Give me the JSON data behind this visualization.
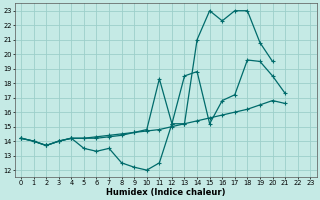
{
  "xlabel": "Humidex (Indice chaleur)",
  "xlim": [
    -0.5,
    23.5
  ],
  "ylim": [
    11.5,
    23.5
  ],
  "xticks": [
    0,
    1,
    2,
    3,
    4,
    5,
    6,
    7,
    8,
    9,
    10,
    11,
    12,
    13,
    14,
    15,
    16,
    17,
    18,
    19,
    20,
    21,
    22,
    23
  ],
  "yticks": [
    12,
    13,
    14,
    15,
    16,
    17,
    18,
    19,
    20,
    21,
    22,
    23
  ],
  "bg_color": "#c5eae5",
  "grid_color": "#9dcfca",
  "line_color": "#006b6b",
  "line1_x": [
    0,
    1,
    2,
    3,
    4,
    5,
    6,
    7,
    8,
    9,
    10,
    11,
    12,
    13,
    14,
    15,
    16,
    17,
    18,
    19,
    20,
    21
  ],
  "line1_y": [
    14.2,
    14.0,
    13.7,
    14.0,
    14.2,
    14.2,
    14.3,
    14.4,
    14.5,
    14.6,
    14.7,
    14.8,
    15.0,
    15.2,
    15.4,
    15.6,
    15.8,
    16.0,
    16.2,
    16.5,
    16.8,
    16.6
  ],
  "line2_x": [
    0,
    1,
    2,
    3,
    4,
    5,
    6,
    7,
    8,
    9,
    10,
    11,
    12,
    13,
    14,
    15,
    16,
    17,
    18,
    19,
    20,
    21,
    22,
    23
  ],
  "line2_y": [
    14.2,
    14.0,
    13.7,
    14.0,
    14.2,
    14.2,
    14.2,
    14.3,
    14.4,
    14.6,
    14.8,
    18.3,
    15.2,
    18.5,
    18.8,
    15.2,
    16.8,
    17.2,
    19.6,
    19.5,
    18.5,
    17.3,
    null,
    null
  ],
  "line3_x": [
    0,
    1,
    2,
    3,
    4,
    5,
    6,
    7,
    8,
    9,
    10,
    11,
    12,
    13,
    14,
    15,
    16,
    17,
    18,
    19,
    20
  ],
  "line3_y": [
    14.2,
    14.0,
    13.7,
    14.0,
    14.2,
    13.5,
    13.3,
    13.5,
    12.5,
    12.2,
    12.0,
    12.5,
    15.2,
    15.2,
    21.0,
    23.0,
    22.3,
    23.0,
    23.0,
    20.8,
    19.5
  ]
}
